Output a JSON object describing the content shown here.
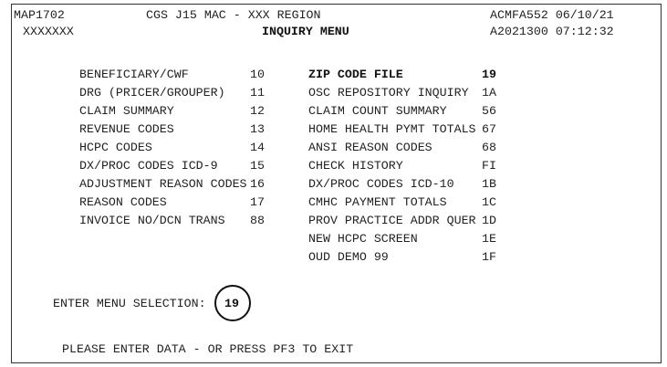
{
  "header": {
    "map_id": "MAP1702",
    "region": "CGS J15 MAC - XXX REGION",
    "terminal_date": "ACMFA552 06/10/21",
    "user_id": "XXXXXXX",
    "title": "INQUIRY MENU",
    "session_time": "A2021300 07:12:32"
  },
  "menu_left": [
    {
      "label": "BENEFICIARY/CWF",
      "code": "10"
    },
    {
      "label": "DRG (PRICER/GROUPER)",
      "code": "11"
    },
    {
      "label": "CLAIM SUMMARY",
      "code": "12"
    },
    {
      "label": "REVENUE CODES",
      "code": "13"
    },
    {
      "label": "HCPC CODES",
      "code": "14"
    },
    {
      "label": "DX/PROC CODES ICD-9",
      "code": "15"
    },
    {
      "label": "ADJUSTMENT REASON CODES",
      "code": "16"
    },
    {
      "label": "REASON CODES",
      "code": "17"
    },
    {
      "label": "INVOICE NO/DCN TRANS",
      "code": "88"
    }
  ],
  "menu_right": [
    {
      "label": "ZIP CODE FILE",
      "code": "19",
      "highlighted": true
    },
    {
      "label": "OSC REPOSITORY INQUIRY",
      "code": "1A"
    },
    {
      "label": "CLAIM COUNT SUMMARY",
      "code": "56"
    },
    {
      "label": "HOME HEALTH PYMT TOTALS",
      "code": "67"
    },
    {
      "label": "ANSI REASON CODES",
      "code": "68"
    },
    {
      "label": "CHECK HISTORY",
      "code": "FI"
    },
    {
      "label": "DX/PROC CODES ICD-10",
      "code": "1B"
    },
    {
      "label": "CMHC PAYMENT TOTALS",
      "code": "1C"
    },
    {
      "label": "PROV PRACTICE ADDR QUER",
      "code": "1D"
    },
    {
      "label": "NEW HCPC SCREEN",
      "code": "1E"
    },
    {
      "label": "OUD DEMO 99",
      "code": "1F"
    }
  ],
  "selection": {
    "label": "ENTER MENU SELECTION:",
    "value": "19"
  },
  "footer": {
    "message": "PLEASE ENTER DATA - OR PRESS PF3 TO EXIT"
  }
}
